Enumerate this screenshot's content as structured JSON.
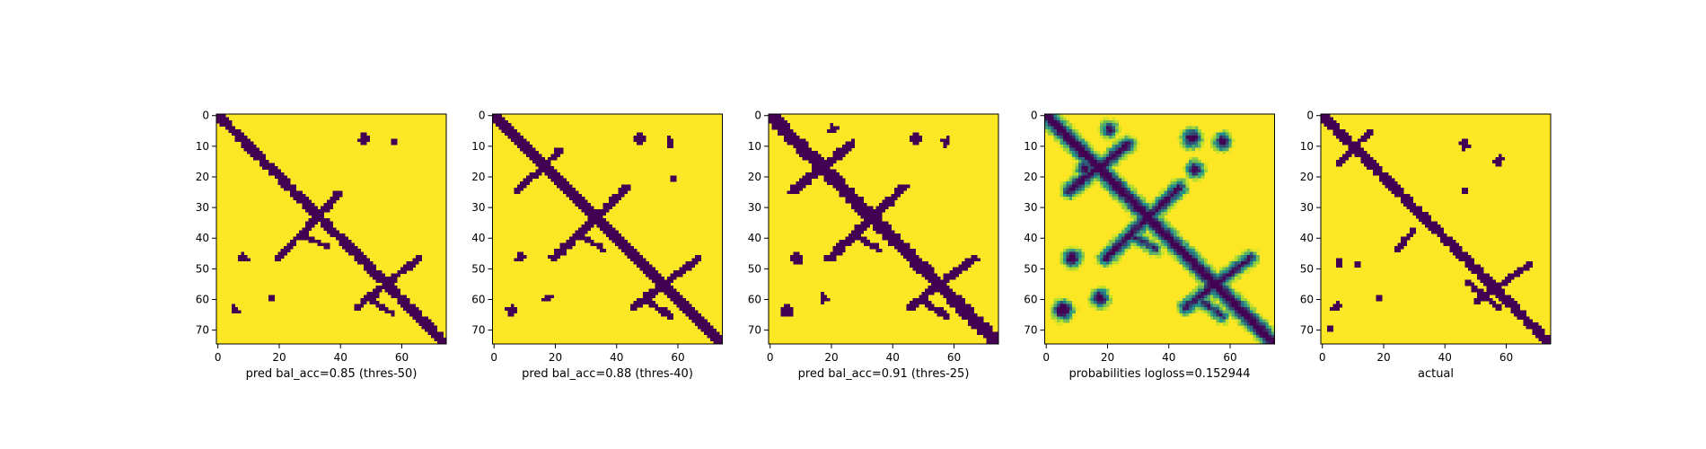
{
  "figure": {
    "background": "#ffffff"
  },
  "colors": {
    "low": "#440154",
    "mid": "#21918c",
    "light": "#b5de2b",
    "high": "#fde725"
  },
  "chart_data": [
    {
      "type": "heatmap",
      "title": "",
      "xlabel": "pred bal_acc=0.85 (thres-50)",
      "ylabel": "",
      "matrix_size": 75,
      "xlim": [
        0,
        75
      ],
      "ylim": [
        75,
        0
      ],
      "xticks": [
        0,
        20,
        40,
        60
      ],
      "yticks": [
        0,
        10,
        20,
        30,
        40,
        50,
        60,
        70
      ],
      "mode": "binary",
      "features": {
        "diag_width": 1.6,
        "anti_segments": [
          {
            "from": [
              20,
              47
            ],
            "to": [
              40,
              26
            ],
            "w": 1.2
          },
          {
            "from": [
              46,
              63
            ],
            "to": [
              66,
              47
            ],
            "w": 1.1
          }
        ],
        "cross_segments": [
          {
            "from": [
              29,
              40
            ],
            "to": [
              36,
              43
            ],
            "w": 0.9
          },
          {
            "from": [
              51,
              61
            ],
            "to": [
              57,
              65
            ],
            "w": 0.9
          }
        ],
        "blobs": [
          {
            "center": [
              48,
              8
            ],
            "r": 1.8
          },
          {
            "center": [
              58,
              9
            ],
            "r": 1.3
          },
          {
            "center": [
              9,
              47
            ],
            "r": 1.5
          },
          {
            "center": [
              18,
              60
            ],
            "r": 1.2
          },
          {
            "center": [
              6,
              64
            ],
            "r": 1.6
          }
        ]
      }
    },
    {
      "type": "heatmap",
      "title": "",
      "xlabel": "pred bal_acc=0.88 (thres-40)",
      "ylabel": "",
      "matrix_size": 75,
      "xlim": [
        0,
        75
      ],
      "ylim": [
        75,
        0
      ],
      "xticks": [
        0,
        20,
        40,
        60
      ],
      "yticks": [
        0,
        10,
        20,
        30,
        40,
        50,
        60,
        70
      ],
      "mode": "binary",
      "features": {
        "diag_width": 1.8,
        "anti_segments": [
          {
            "from": [
              20,
              47
            ],
            "to": [
              44,
              24
            ],
            "w": 1.3
          },
          {
            "from": [
              46,
              63
            ],
            "to": [
              67,
              47
            ],
            "w": 1.2
          },
          {
            "from": [
              8,
              25
            ],
            "to": [
              22,
              12
            ],
            "w": 1.1
          }
        ],
        "cross_segments": [
          {
            "from": [
              29,
              40
            ],
            "to": [
              36,
              44
            ],
            "w": 0.9
          },
          {
            "from": [
              51,
              61
            ],
            "to": [
              58,
              66
            ],
            "w": 1.0
          }
        ],
        "blobs": [
          {
            "center": [
              48,
              8
            ],
            "r": 1.9
          },
          {
            "center": [
              58,
              9
            ],
            "r": 1.4
          },
          {
            "center": [
              59,
              21
            ],
            "r": 1.0
          },
          {
            "center": [
              9,
              47
            ],
            "r": 1.7
          },
          {
            "center": [
              18,
              60
            ],
            "r": 1.3
          },
          {
            "center": [
              6,
              64
            ],
            "r": 1.8
          }
        ]
      }
    },
    {
      "type": "heatmap",
      "title": "",
      "xlabel": "pred bal_acc=0.91 (thres-25)",
      "ylabel": "",
      "matrix_size": 75,
      "xlim": [
        0,
        75
      ],
      "ylim": [
        75,
        0
      ],
      "xticks": [
        0,
        20,
        40,
        60
      ],
      "yticks": [
        0,
        10,
        20,
        30,
        40,
        50,
        60,
        70
      ],
      "mode": "binary",
      "features": {
        "diag_width": 2.1,
        "anti_segments": [
          {
            "from": [
              20,
              47
            ],
            "to": [
              44,
              24
            ],
            "w": 1.5
          },
          {
            "from": [
              46,
              63
            ],
            "to": [
              67,
              47
            ],
            "w": 1.3
          },
          {
            "from": [
              8,
              25
            ],
            "to": [
              27,
              10
            ],
            "w": 1.5
          }
        ],
        "cross_segments": [
          {
            "from": [
              29,
              40
            ],
            "to": [
              36,
              44
            ],
            "w": 1.0
          },
          {
            "from": [
              51,
              61
            ],
            "to": [
              58,
              66
            ],
            "w": 1.0
          }
        ],
        "blobs": [
          {
            "center": [
              48,
              8
            ],
            "r": 2.0
          },
          {
            "center": [
              58,
              9
            ],
            "r": 1.6
          },
          {
            "center": [
              9,
              47
            ],
            "r": 1.9
          },
          {
            "center": [
              18,
              60
            ],
            "r": 1.6
          },
          {
            "center": [
              6,
              64
            ],
            "r": 2.1
          },
          {
            "center": [
              21,
              5
            ],
            "r": 1.4
          }
        ]
      }
    },
    {
      "type": "heatmap",
      "title": "",
      "xlabel": "probabilities logloss=0.152944",
      "ylabel": "",
      "matrix_size": 75,
      "xlim": [
        0,
        75
      ],
      "ylim": [
        75,
        0
      ],
      "xticks": [
        0,
        20,
        40,
        60
      ],
      "yticks": [
        0,
        10,
        20,
        30,
        40,
        50,
        60,
        70
      ],
      "mode": "continuous",
      "features": {
        "diag_width": 2.0,
        "anti_segments": [
          {
            "from": [
              20,
              47
            ],
            "to": [
              44,
              24
            ],
            "w": 1.6
          },
          {
            "from": [
              46,
              63
            ],
            "to": [
              67,
              47
            ],
            "w": 1.4
          },
          {
            "from": [
              8,
              25
            ],
            "to": [
              27,
              10
            ],
            "w": 1.6
          }
        ],
        "cross_segments": [
          {
            "from": [
              29,
              40
            ],
            "to": [
              36,
              44
            ],
            "w": 1.0
          },
          {
            "from": [
              51,
              61
            ],
            "to": [
              58,
              66
            ],
            "w": 1.0
          }
        ],
        "blobs": [
          {
            "center": [
              48,
              8
            ],
            "r": 2.4
          },
          {
            "center": [
              58,
              9
            ],
            "r": 2.0
          },
          {
            "center": [
              49,
              18
            ],
            "r": 2.0
          },
          {
            "center": [
              9,
              47
            ],
            "r": 2.3
          },
          {
            "center": [
              18,
              60
            ],
            "r": 2.2
          },
          {
            "center": [
              6,
              64
            ],
            "r": 2.6
          },
          {
            "center": [
              21,
              5
            ],
            "r": 1.8
          },
          {
            "center": [
              13,
              18
            ],
            "r": 2.0
          }
        ]
      }
    },
    {
      "type": "heatmap",
      "title": "",
      "xlabel": "actual",
      "ylabel": "",
      "matrix_size": 75,
      "xlim": [
        0,
        75
      ],
      "ylim": [
        75,
        0
      ],
      "xticks": [
        0,
        20,
        40,
        60
      ],
      "yticks": [
        0,
        10,
        20,
        30,
        40,
        50,
        60,
        70
      ],
      "mode": "binary",
      "features": {
        "diag_width": 1.6,
        "anti_segments": [
          {
            "from": [
              6,
              16
            ],
            "to": [
              16,
              6
            ],
            "w": 1.0
          },
          {
            "from": [
              25,
              44
            ],
            "to": [
              30,
              38
            ],
            "w": 0.9
          },
          {
            "from": [
              51,
              61
            ],
            "to": [
              68,
              49
            ],
            "w": 1.0
          }
        ],
        "cross_segments": [
          {
            "from": [
              48,
              55
            ],
            "to": [
              58,
              63
            ],
            "w": 0.9
          }
        ],
        "blobs": [
          {
            "center": [
              47,
              10
            ],
            "r": 1.7
          },
          {
            "center": [
              58,
              15
            ],
            "r": 1.6
          },
          {
            "center": [
              47,
              25
            ],
            "r": 1.2
          },
          {
            "center": [
              6,
              48
            ],
            "r": 1.4
          },
          {
            "center": [
              12,
              49
            ],
            "r": 1.0
          },
          {
            "center": [
              19,
              60
            ],
            "r": 1.3
          },
          {
            "center": [
              5,
              63
            ],
            "r": 1.5
          },
          {
            "center": [
              3,
              70
            ],
            "r": 1.3
          }
        ]
      }
    }
  ]
}
